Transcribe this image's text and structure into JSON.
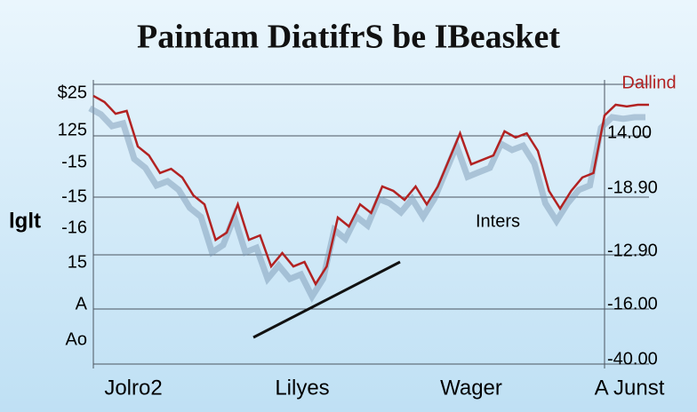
{
  "chart_data": {
    "type": "line",
    "title": "Paintam DiatifrS be IBeasket",
    "y_label": "lglt",
    "left_axis_texts": [
      "$25",
      "125",
      "-15",
      "-15",
      "-16",
      "15",
      "A",
      "Ao"
    ],
    "right_axis_texts": [
      "14.00",
      "-18.90",
      "-12.90",
      "-16.00",
      "-40.00"
    ],
    "x_labels": [
      "Jolro2",
      "Lilyes",
      "Wager",
      "A Junst"
    ],
    "annotation": "Inters",
    "xlim": [
      0,
      50
    ],
    "ylim": [
      0,
      100
    ],
    "x": [
      0,
      1,
      2,
      3,
      4,
      5,
      6,
      7,
      8,
      9,
      10,
      11,
      12,
      13,
      14,
      15,
      16,
      17,
      18,
      19,
      20,
      21,
      22,
      23,
      24,
      25,
      26,
      27,
      28,
      29,
      30,
      31,
      32,
      33,
      34,
      35,
      36,
      37,
      38,
      39,
      40,
      41,
      42,
      43,
      44,
      45,
      46,
      47,
      48,
      49,
      50
    ],
    "series": [
      {
        "name": "Dallind",
        "color": "#b22222",
        "values": [
          95.9,
          93.7,
          89.5,
          90.5,
          77.8,
          74.6,
          68.3,
          69.8,
          66.7,
          60.3,
          57.1,
          44.4,
          47.0,
          57.1,
          44.4,
          46.0,
          34.9,
          39.7,
          34.9,
          36.5,
          28.6,
          34.9,
          52.4,
          49.2,
          57.1,
          54.0,
          63.5,
          61.9,
          58.7,
          63.5,
          57.1,
          63.5,
          73.0,
          82.5,
          71.4,
          73.0,
          74.6,
          83.2,
          81.0,
          82.5,
          76.2,
          61.9,
          55.6,
          61.9,
          66.7,
          68.3,
          88.9,
          92.7,
          92.1,
          92.7,
          92.7
        ]
      }
    ]
  }
}
